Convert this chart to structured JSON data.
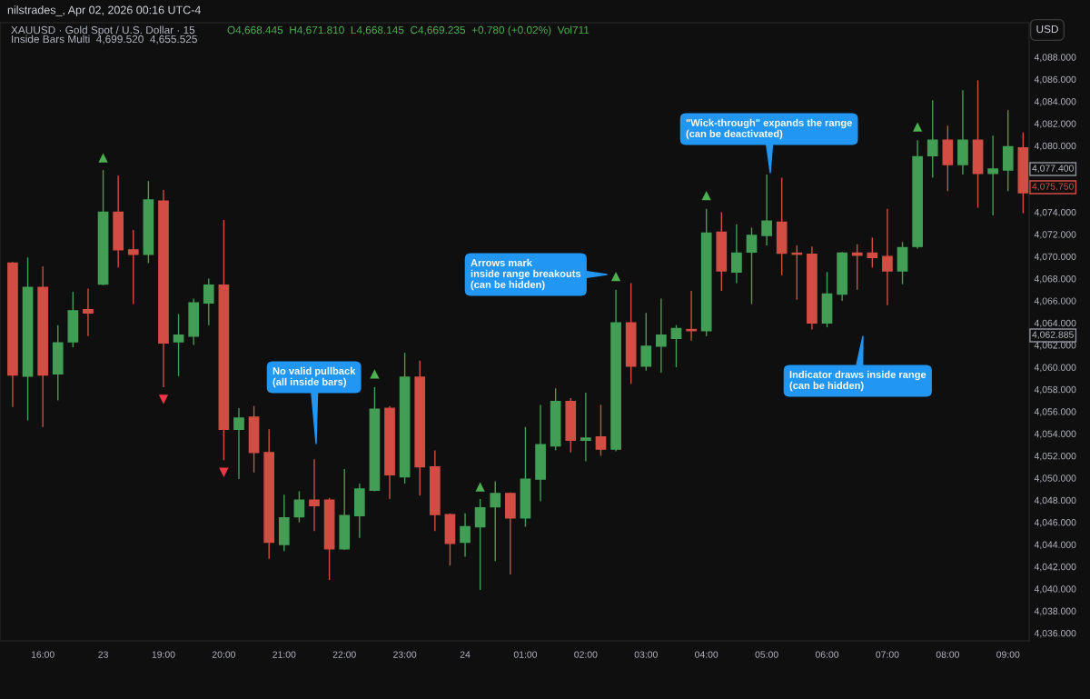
{
  "chart_data": {
    "type": "candlestick",
    "title": "XAUUSD · Gold Spot / U.S. Dollar · 15",
    "categories": [
      null,
      null,
      "16:00",
      null,
      null,
      null,
      "23",
      null,
      null,
      null,
      "19:00",
      null,
      null,
      null,
      "20:00",
      null,
      null,
      null,
      "21:00",
      null,
      null,
      null,
      "22:00",
      null,
      null,
      null,
      "23:00",
      null,
      null,
      null,
      "24",
      null,
      null,
      null,
      "01:00",
      null,
      null,
      null,
      "02:00",
      null,
      null,
      null,
      "03:00",
      null,
      null,
      null,
      "04:00",
      null,
      null,
      null,
      "05:00",
      null,
      null,
      null,
      "06:00",
      null,
      null,
      null,
      "07:00",
      null,
      null,
      null,
      "08:00",
      null,
      null,
      null,
      "09:00",
      null
    ],
    "ohlc": [
      [
        4069.4,
        4069.5,
        4056.4,
        4059.3
      ],
      [
        4059.2,
        4069.9,
        4055.2,
        4067.2
      ],
      [
        4067.2,
        4069.1,
        4054.6,
        4059.3
      ],
      [
        4059.4,
        4063.8,
        4057.0,
        4062.2
      ],
      [
        4062.3,
        4066.8,
        4061.8,
        4065.1
      ],
      [
        4065.2,
        4067.1,
        4062.8,
        4064.9
      ],
      [
        4067.5,
        4077.8,
        4067.4,
        4074.0
      ],
      [
        4074.0,
        4077.3,
        4069.0,
        4070.6
      ],
      [
        4070.6,
        4072.4,
        4065.7,
        4070.2
      ],
      [
        4070.2,
        4076.8,
        4069.4,
        4075.1
      ],
      [
        4075.0,
        4076.0,
        4058.2,
        4062.2
      ],
      [
        4062.3,
        4064.8,
        4059.2,
        4062.9
      ],
      [
        4062.8,
        4066.2,
        4062.0,
        4065.8
      ],
      [
        4065.8,
        4068.0,
        4063.8,
        4067.4
      ],
      [
        4067.4,
        4073.3,
        4051.6,
        4054.4
      ],
      [
        4054.4,
        4056.3,
        4049.9,
        4055.4
      ],
      [
        4055.5,
        4056.5,
        4050.5,
        4052.3
      ],
      [
        4052.3,
        4054.4,
        4042.7,
        4044.2
      ],
      [
        4044.0,
        4048.5,
        4043.4,
        4046.4
      ],
      [
        4046.5,
        4048.8,
        4046.0,
        4048.0
      ],
      [
        4048.0,
        4051.7,
        4045.2,
        4047.5
      ],
      [
        4048.0,
        4048.2,
        4040.8,
        4043.6
      ],
      [
        4043.6,
        4050.8,
        4043.5,
        4046.6
      ],
      [
        4046.6,
        4049.5,
        4044.6,
        4049.0
      ],
      [
        4048.9,
        4058.2,
        4048.8,
        4056.2
      ],
      [
        4056.3,
        4056.5,
        4048.1,
        4050.3
      ],
      [
        4050.1,
        4061.3,
        4049.5,
        4059.1
      ],
      [
        4059.1,
        4060.6,
        4048.4,
        4051.0
      ],
      [
        4051.0,
        4052.5,
        4045.2,
        4046.7
      ],
      [
        4046.7,
        4046.8,
        4042.1,
        4044.1
      ],
      [
        4044.2,
        4046.8,
        4042.9,
        4045.6
      ],
      [
        4045.6,
        4048.1,
        4039.9,
        4047.3
      ],
      [
        4047.4,
        4049.7,
        4042.5,
        4048.6
      ],
      [
        4048.6,
        4048.7,
        4041.3,
        4046.4
      ],
      [
        4046.4,
        4054.6,
        4045.6,
        4049.9
      ],
      [
        4049.9,
        4056.6,
        4047.9,
        4053.0
      ],
      [
        4052.9,
        4058.1,
        4052.5,
        4056.9
      ],
      [
        4056.9,
        4057.2,
        4052.3,
        4053.4
      ],
      [
        4053.4,
        4057.7,
        4051.5,
        4053.6
      ],
      [
        4053.7,
        4056.6,
        4052.0,
        4052.6
      ],
      [
        4052.6,
        4067.0,
        4052.4,
        4064.0
      ],
      [
        4064.0,
        4067.6,
        4058.5,
        4060.1
      ],
      [
        4060.1,
        4064.9,
        4059.7,
        4061.9
      ],
      [
        4061.9,
        4066.2,
        4059.5,
        4062.9
      ],
      [
        4062.6,
        4063.8,
        4060.0,
        4063.5
      ],
      [
        4063.4,
        4066.9,
        4062.4,
        4063.3
      ],
      [
        4063.3,
        4074.3,
        4062.8,
        4072.1
      ],
      [
        4072.2,
        4074.0,
        4066.9,
        4068.7
      ],
      [
        4068.6,
        4072.9,
        4067.6,
        4070.3
      ],
      [
        4070.4,
        4072.6,
        4065.7,
        4071.9
      ],
      [
        4071.9,
        4077.4,
        4071.0,
        4073.2
      ],
      [
        4073.1,
        4077.1,
        4068.3,
        4070.3
      ],
      [
        4070.3,
        4071.0,
        4066.1,
        4070.2
      ],
      [
        4070.2,
        4070.9,
        4063.4,
        4064.0
      ],
      [
        4064.0,
        4068.6,
        4063.6,
        4066.6
      ],
      [
        4066.6,
        4070.4,
        4066.0,
        4070.3
      ],
      [
        4070.3,
        4071.1,
        4067.0,
        4070.1
      ],
      [
        4070.3,
        4071.7,
        4069.0,
        4069.9
      ],
      [
        4070.0,
        4074.3,
        4065.6,
        4068.7
      ],
      [
        4068.7,
        4071.3,
        4067.5,
        4070.8
      ],
      [
        4070.9,
        4080.5,
        4070.7,
        4079.0
      ],
      [
        4079.1,
        4084.1,
        4077.1,
        4080.5
      ],
      [
        4080.5,
        4081.8,
        4075.9,
        4078.3
      ],
      [
        4078.3,
        4085.0,
        4077.4,
        4080.5
      ],
      [
        4080.5,
        4085.9,
        4074.4,
        4077.5
      ],
      [
        4077.5,
        4080.9,
        4073.7,
        4077.9
      ],
      [
        4077.8,
        4083.2,
        4075.9,
        4079.9
      ],
      [
        4079.8,
        4081.2,
        4073.9,
        4075.75
      ]
    ],
    "colors": [
      "#d24d43",
      "#429e55",
      "#d24d43",
      "#429e55",
      "#429e55",
      "#d24d43",
      "#429e55",
      "#d24d43",
      "#d24d43",
      "#429e55",
      "#d24d43",
      "#429e55",
      "#429e55",
      "#429e55",
      "#d24d43",
      "#429e55",
      "#d24d43",
      "#d24d43",
      "#429e55",
      "#429e55",
      "#d24d43",
      "#d24d43",
      "#429e55",
      "#429e55",
      "#429e55",
      "#d24d43",
      "#429e55",
      "#d24d43",
      "#d24d43",
      "#d24d43",
      "#429e55",
      "#429e55",
      "#429e55",
      "#d24d43",
      "#429e55",
      "#429e55",
      "#429e55",
      "#d24d43",
      "#429e55",
      "#d24d43",
      "#429e55",
      "#d24d43",
      "#429e55",
      "#429e55",
      "#429e55",
      "#d24d43",
      "#429e55",
      "#d24d43",
      "#429e55",
      "#429e55",
      "#429e55",
      "#d24d43",
      "#d24d43",
      "#d24d43",
      "#429e55",
      "#429e55",
      "#d24d43",
      "#d24d43",
      "#d24d43",
      "#429e55",
      "#429e55",
      "#429e55",
      "#d24d43",
      "#429e55",
      "#d24d43",
      "#429e55",
      "#429e55",
      "#d24d43"
    ],
    "series": [
      {
        "type": "scatter",
        "marker": "triangle",
        "color": "#4caf50",
        "values": [
          null,
          null,
          null,
          null,
          null,
          null,
          4078.9,
          null,
          null,
          null,
          null,
          null,
          null,
          null,
          null,
          null,
          null,
          null,
          null,
          null,
          null,
          null,
          null,
          null,
          4059.4,
          null,
          null,
          null,
          null,
          null,
          null,
          4049.2,
          null,
          null,
          null,
          null,
          null,
          null,
          null,
          null,
          4068.2,
          null,
          null,
          null,
          null,
          null,
          4075.5,
          null,
          null,
          null,
          null,
          null,
          null,
          null,
          null,
          null,
          null,
          null,
          null,
          null,
          4081.7,
          null,
          null,
          null,
          null,
          null,
          null,
          null
        ]
      },
      {
        "type": "scatter",
        "marker": "triangle_down",
        "color": "#f23645",
        "values": [
          null,
          null,
          null,
          null,
          null,
          null,
          null,
          null,
          null,
          null,
          4057.1,
          null,
          null,
          null,
          4050.5,
          null,
          null,
          null,
          null,
          null,
          null,
          null,
          null,
          null,
          null,
          null,
          null,
          null,
          null,
          null,
          null,
          null,
          null,
          null,
          null,
          null,
          null,
          null,
          null,
          null,
          null,
          null,
          null,
          null,
          null,
          null,
          null,
          null,
          null,
          null,
          null,
          null,
          null,
          null,
          null,
          null,
          null,
          null,
          null,
          null,
          null,
          null,
          null,
          null,
          null,
          null,
          null,
          null
        ]
      }
    ],
    "ylim": [
      4035.3,
      4091.1
    ],
    "yticks": [
      {
        "value": 4036,
        "label": "4,036.000"
      },
      {
        "value": 4038,
        "label": "4,038.000"
      },
      {
        "value": 4040,
        "label": "4,040.000"
      },
      {
        "value": 4042,
        "label": "4,042.000"
      },
      {
        "value": 4044,
        "label": "4,044.000"
      },
      {
        "value": 4046,
        "label": "4,046.000"
      },
      {
        "value": 4048,
        "label": "4,048.000"
      },
      {
        "value": 4050,
        "label": "4,050.000"
      },
      {
        "value": 4052,
        "label": "4,052.000"
      },
      {
        "value": 4054,
        "label": "4,054.000"
      },
      {
        "value": 4056,
        "label": "4,056.000"
      },
      {
        "value": 4058,
        "label": "4,058.000"
      },
      {
        "value": 4060,
        "label": "4,060.000"
      },
      {
        "value": 4062,
        "label": "4,062.000"
      },
      {
        "value": 4064,
        "label": "4,064.000"
      },
      {
        "value": 4066,
        "label": "4,066.000"
      },
      {
        "value": 4068,
        "label": "4,068.000"
      },
      {
        "value": 4070,
        "label": "4,070.000"
      },
      {
        "value": 4072,
        "label": "4,072.000"
      },
      {
        "value": 4074,
        "label": "4,074.000"
      },
      {
        "value": 4080,
        "label": "4,080.000"
      },
      {
        "value": 4082,
        "label": "4,082.000"
      },
      {
        "value": 4084,
        "label": "4,084.000"
      },
      {
        "value": 4086,
        "label": "4,086.000"
      },
      {
        "value": 4088,
        "label": "4,088.000"
      }
    ],
    "grid": false,
    "annotations": [
      "nilstrades_, Apr 02, 2026 00:16 UTC-4",
      "O4,668.445  H4,671.810  L4,668.145  C4,669.235  +0.780 (+0.02%)  Vol711",
      "Inside Bars Multi  4,699.520  4,655.525",
      "USD",
      "No valid pullback\n(all inside bars)",
      "Arrows mark\ninside range breakouts\n(can be hidden)",
      "\"Wick-through\" expands the range\n(can be deactivated)",
      "Indicator draws inside range\n(can be hidden)",
      "4,077.400",
      "4,075.750",
      "4,062.885"
    ]
  }
}
